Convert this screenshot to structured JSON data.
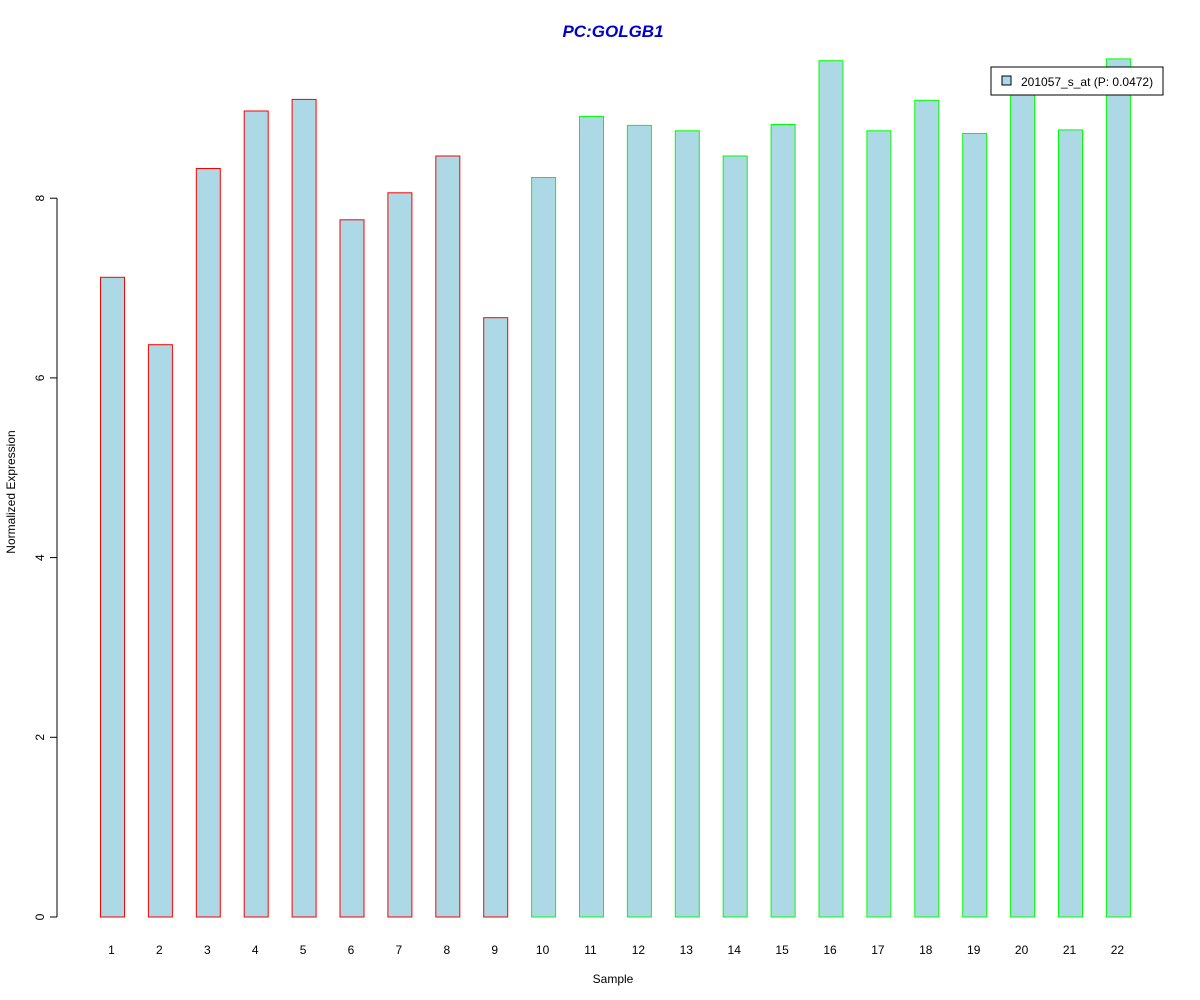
{
  "chart_data": {
    "type": "bar",
    "title": "PC:GOLGB1",
    "xlabel": "Sample",
    "ylabel": "Normalized Expression",
    "categories": [
      "1",
      "2",
      "3",
      "4",
      "5",
      "6",
      "7",
      "8",
      "9",
      "10",
      "11",
      "12",
      "13",
      "14",
      "15",
      "16",
      "17",
      "18",
      "19",
      "20",
      "21",
      "22"
    ],
    "series": [
      {
        "name": "201057_s_at (P: 0.0472)",
        "values": [
          7.12,
          6.37,
          8.33,
          8.97,
          9.1,
          7.76,
          8.06,
          8.47,
          6.67,
          8.23,
          8.91,
          8.81,
          8.75,
          8.47,
          8.82,
          9.53,
          8.75,
          9.09,
          8.72,
          9.22,
          8.76,
          9.55
        ]
      }
    ],
    "ylim": [
      0,
      9.6
    ],
    "yticks": [
      0,
      2,
      4,
      6,
      8
    ],
    "bar_fill": "#add8e6",
    "bar_borders": [
      "#ff0000",
      "#ff0000",
      "#ff0000",
      "#ff0000",
      "#ff0000",
      "#ff0000",
      "#ff0000",
      "#ff0000",
      "#ff0000",
      "#00ff00",
      "#00ff00",
      "#00ff00",
      "#00ff00",
      "#00ff00",
      "#00ff00",
      "#00ff00",
      "#00ff00",
      "#00ff00",
      "#00ff00",
      "#00ff00",
      "#00ff00",
      "#00ff00"
    ],
    "title_color": "#0000cd",
    "grid": false,
    "legend_position": "top-right"
  }
}
